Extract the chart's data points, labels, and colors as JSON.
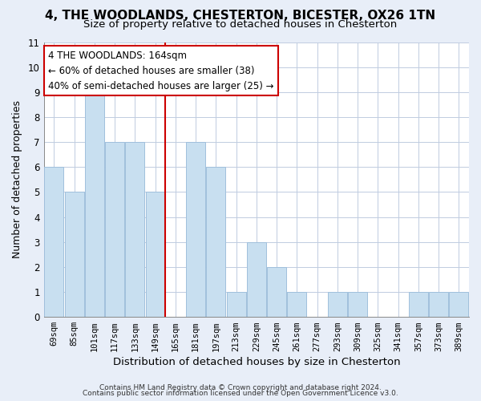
{
  "title_line1": "4, THE WOODLANDS, CHESTERTON, BICESTER, OX26 1TN",
  "title_line2": "Size of property relative to detached houses in Chesterton",
  "xlabel": "Distribution of detached houses by size in Chesterton",
  "ylabel": "Number of detached properties",
  "footer_line1": "Contains HM Land Registry data © Crown copyright and database right 2024.",
  "footer_line2": "Contains public sector information licensed under the Open Government Licence v3.0.",
  "bar_labels": [
    "69sqm",
    "85sqm",
    "101sqm",
    "117sqm",
    "133sqm",
    "149sqm",
    "165sqm",
    "181sqm",
    "197sqm",
    "213sqm",
    "229sqm",
    "245sqm",
    "261sqm",
    "277sqm",
    "293sqm",
    "309sqm",
    "325sqm",
    "341sqm",
    "357sqm",
    "373sqm",
    "389sqm"
  ],
  "bar_values": [
    6,
    5,
    9,
    7,
    7,
    5,
    0,
    7,
    6,
    1,
    3,
    2,
    1,
    0,
    1,
    1,
    0,
    0,
    1,
    1,
    1
  ],
  "bar_color": "#c8dff0",
  "bar_edge_color": "#a0c0dc",
  "reference_line_color": "#cc0000",
  "annotation_title": "4 THE WOODLANDS: 164sqm",
  "annotation_line1": "← 60% of detached houses are smaller (38)",
  "annotation_line2": "40% of semi-detached houses are larger (25) →",
  "annotation_box_color": "white",
  "annotation_box_edge": "#cc0000",
  "ylim": [
    0,
    11
  ],
  "yticks": [
    0,
    1,
    2,
    3,
    4,
    5,
    6,
    7,
    8,
    9,
    10,
    11
  ],
  "background_color": "#e8eef8",
  "plot_bg_color": "white",
  "grid_color": "#c0cce0",
  "title_fontsize": 11,
  "subtitle_fontsize": 9.5
}
